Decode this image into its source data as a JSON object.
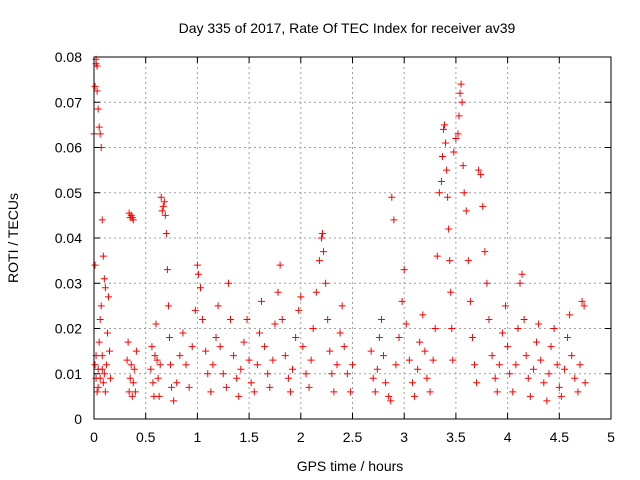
{
  "chart_data": {
    "type": "scatter",
    "title": "Day 335 of 2017, Rate Of TEC Index for receiver av39",
    "xlabel": "GPS time / hours",
    "ylabel": "ROTI / TECUs",
    "xlim": [
      0,
      5
    ],
    "ylim": [
      0,
      0.08
    ],
    "xticks": [
      0,
      0.5,
      1,
      1.5,
      2,
      2.5,
      3,
      3.5,
      4,
      4.5,
      5
    ],
    "yticks": [
      0,
      0.01,
      0.02,
      0.03,
      0.04,
      0.05,
      0.06,
      0.07,
      0.08
    ],
    "xtick_labels": [
      "0",
      "0.5",
      "1",
      "1.5",
      "2",
      "2.5",
      "3",
      "3.5",
      "4",
      "4.5",
      "5"
    ],
    "ytick_labels": [
      "0",
      "0.01",
      "0.02",
      "0.03",
      "0.04",
      "0.05",
      "0.06",
      "0.07",
      "0.08"
    ],
    "grid": true,
    "marker": "+",
    "color": "#ff0000",
    "series": [
      {
        "name": "ROTI",
        "points": [
          [
            0.01,
            0.0735
          ],
          [
            0.02,
            0.0795
          ],
          [
            0.02,
            0.0785
          ],
          [
            0.03,
            0.078
          ],
          [
            0.03,
            0.0725
          ],
          [
            0.04,
            0.0685
          ],
          [
            0.05,
            0.0645
          ],
          [
            0.06,
            0.063
          ],
          [
            0.07,
            0.06
          ],
          [
            0.08,
            0.044
          ],
          [
            0.09,
            0.036
          ],
          [
            0.1,
            0.031
          ],
          [
            0.11,
            0.029
          ],
          [
            0.0,
            0.063
          ],
          [
            0.01,
            0.034
          ],
          [
            0.01,
            0.012
          ],
          [
            0.02,
            0.009
          ],
          [
            0.03,
            0.006
          ],
          [
            0.04,
            0.011
          ],
          [
            0.05,
            0.017
          ],
          [
            0.06,
            0.022
          ],
          [
            0.07,
            0.025
          ],
          [
            0.08,
            0.014
          ],
          [
            0.09,
            0.008
          ],
          [
            0.1,
            0.01
          ],
          [
            0.11,
            0.006
          ],
          [
            0.12,
            0.012
          ],
          [
            0.13,
            0.019
          ],
          [
            0.14,
            0.027
          ],
          [
            0.15,
            0.015
          ],
          [
            0.16,
            0.009
          ],
          [
            0.02,
            0.014
          ],
          [
            0.04,
            0.007
          ],
          [
            0.06,
            0.009
          ],
          [
            0.08,
            0.011
          ],
          [
            0.34,
            0.0455
          ],
          [
            0.35,
            0.0445
          ],
          [
            0.36,
            0.045
          ],
          [
            0.37,
            0.0445
          ],
          [
            0.38,
            0.044
          ],
          [
            0.32,
            0.013
          ],
          [
            0.33,
            0.017
          ],
          [
            0.34,
            0.006
          ],
          [
            0.35,
            0.009
          ],
          [
            0.36,
            0.012
          ],
          [
            0.37,
            0.005
          ],
          [
            0.38,
            0.008
          ],
          [
            0.39,
            0.011
          ],
          [
            0.4,
            0.006
          ],
          [
            0.41,
            0.015
          ],
          [
            0.55,
            0.011
          ],
          [
            0.56,
            0.016
          ],
          [
            0.57,
            0.008
          ],
          [
            0.58,
            0.005
          ],
          [
            0.59,
            0.014
          ],
          [
            0.6,
            0.021
          ],
          [
            0.61,
            0.013
          ],
          [
            0.62,
            0.009
          ],
          [
            0.63,
            0.005
          ],
          [
            0.64,
            0.012
          ],
          [
            0.65,
            0.049
          ],
          [
            0.66,
            0.046
          ],
          [
            0.67,
            0.047
          ],
          [
            0.68,
            0.048
          ],
          [
            0.69,
            0.045
          ],
          [
            0.7,
            0.041
          ],
          [
            0.71,
            0.033
          ],
          [
            0.72,
            0.025
          ],
          [
            0.73,
            0.018
          ],
          [
            0.74,
            0.012
          ],
          [
            0.75,
            0.007
          ],
          [
            0.77,
            0.004
          ],
          [
            0.8,
            0.008
          ],
          [
            0.83,
            0.014
          ],
          [
            0.86,
            0.019
          ],
          [
            0.89,
            0.012
          ],
          [
            0.92,
            0.007
          ],
          [
            0.95,
            0.016
          ],
          [
            0.98,
            0.024
          ],
          [
            1.0,
            0.034
          ],
          [
            1.01,
            0.032
          ],
          [
            1.03,
            0.029
          ],
          [
            1.05,
            0.022
          ],
          [
            1.08,
            0.015
          ],
          [
            1.1,
            0.01
          ],
          [
            1.13,
            0.006
          ],
          [
            1.15,
            0.012
          ],
          [
            1.18,
            0.018
          ],
          [
            1.2,
            0.025
          ],
          [
            1.22,
            0.016
          ],
          [
            1.25,
            0.01
          ],
          [
            1.28,
            0.007
          ],
          [
            1.3,
            0.03
          ],
          [
            1.32,
            0.022
          ],
          [
            1.35,
            0.014
          ],
          [
            1.38,
            0.009
          ],
          [
            1.4,
            0.005
          ],
          [
            1.42,
            0.011
          ],
          [
            1.45,
            0.017
          ],
          [
            1.48,
            0.022
          ],
          [
            1.5,
            0.013
          ],
          [
            1.52,
            0.008
          ],
          [
            1.55,
            0.006
          ],
          [
            1.58,
            0.012
          ],
          [
            1.6,
            0.019
          ],
          [
            1.62,
            0.026
          ],
          [
            1.65,
            0.016
          ],
          [
            1.68,
            0.01
          ],
          [
            1.7,
            0.007
          ],
          [
            1.73,
            0.013
          ],
          [
            1.75,
            0.021
          ],
          [
            1.78,
            0.028
          ],
          [
            1.8,
            0.034
          ],
          [
            1.82,
            0.022
          ],
          [
            1.85,
            0.014
          ],
          [
            1.88,
            0.009
          ],
          [
            1.9,
            0.006
          ],
          [
            1.92,
            0.011
          ],
          [
            1.95,
            0.018
          ],
          [
            1.98,
            0.024
          ],
          [
            2.0,
            0.027
          ],
          [
            2.02,
            0.016
          ],
          [
            2.05,
            0.01
          ],
          [
            2.08,
            0.007
          ],
          [
            2.1,
            0.013
          ],
          [
            2.12,
            0.02
          ],
          [
            2.15,
            0.028
          ],
          [
            2.18,
            0.035
          ],
          [
            2.2,
            0.04
          ],
          [
            2.21,
            0.041
          ],
          [
            2.22,
            0.037
          ],
          [
            2.24,
            0.03
          ],
          [
            2.26,
            0.022
          ],
          [
            2.28,
            0.015
          ],
          [
            2.3,
            0.01
          ],
          [
            2.32,
            0.006
          ],
          [
            2.35,
            0.012
          ],
          [
            2.38,
            0.019
          ],
          [
            2.4,
            0.025
          ],
          [
            2.42,
            0.016
          ],
          [
            2.45,
            0.01
          ],
          [
            2.48,
            0.006
          ],
          [
            2.5,
            0.012
          ],
          [
            2.68,
            0.015
          ],
          [
            2.7,
            0.009
          ],
          [
            2.72,
            0.006
          ],
          [
            2.74,
            0.011
          ],
          [
            2.76,
            0.018
          ],
          [
            2.78,
            0.022
          ],
          [
            2.8,
            0.014
          ],
          [
            2.82,
            0.008
          ],
          [
            2.85,
            0.005
          ],
          [
            2.87,
            0.004
          ],
          [
            2.88,
            0.049
          ],
          [
            2.9,
            0.044
          ],
          [
            2.92,
            0.012
          ],
          [
            2.95,
            0.018
          ],
          [
            2.98,
            0.026
          ],
          [
            3.0,
            0.033
          ],
          [
            3.02,
            0.021
          ],
          [
            3.05,
            0.013
          ],
          [
            3.08,
            0.008
          ],
          [
            3.1,
            0.005
          ],
          [
            3.13,
            0.011
          ],
          [
            3.15,
            0.017
          ],
          [
            3.18,
            0.023
          ],
          [
            3.2,
            0.015
          ],
          [
            3.22,
            0.009
          ],
          [
            3.25,
            0.006
          ],
          [
            3.28,
            0.013
          ],
          [
            3.3,
            0.02
          ],
          [
            3.32,
            0.036
          ],
          [
            3.34,
            0.05
          ],
          [
            3.36,
            0.0525
          ],
          [
            3.37,
            0.058
          ],
          [
            3.38,
            0.064
          ],
          [
            3.39,
            0.065
          ],
          [
            3.4,
            0.061
          ],
          [
            3.41,
            0.055
          ],
          [
            3.42,
            0.049
          ],
          [
            3.43,
            0.042
          ],
          [
            3.44,
            0.035
          ],
          [
            3.45,
            0.028
          ],
          [
            3.46,
            0.02
          ],
          [
            3.47,
            0.013
          ],
          [
            3.48,
            0.059
          ],
          [
            3.5,
            0.062
          ],
          [
            3.52,
            0.063
          ],
          [
            3.53,
            0.067
          ],
          [
            3.54,
            0.072
          ],
          [
            3.55,
            0.074
          ],
          [
            3.56,
            0.07
          ],
          [
            3.57,
            0.056
          ],
          [
            3.58,
            0.05
          ],
          [
            3.6,
            0.046
          ],
          [
            3.62,
            0.035
          ],
          [
            3.64,
            0.026
          ],
          [
            3.66,
            0.018
          ],
          [
            3.68,
            0.012
          ],
          [
            3.7,
            0.008
          ],
          [
            3.72,
            0.055
          ],
          [
            3.74,
            0.054
          ],
          [
            3.76,
            0.047
          ],
          [
            3.78,
            0.037
          ],
          [
            3.8,
            0.03
          ],
          [
            3.82,
            0.022
          ],
          [
            3.85,
            0.014
          ],
          [
            3.88,
            0.009
          ],
          [
            3.9,
            0.006
          ],
          [
            3.92,
            0.012
          ],
          [
            3.95,
            0.019
          ],
          [
            3.98,
            0.025
          ],
          [
            4.0,
            0.016
          ],
          [
            4.02,
            0.01
          ],
          [
            4.05,
            0.006
          ],
          [
            4.08,
            0.012
          ],
          [
            4.1,
            0.02
          ],
          [
            4.12,
            0.03
          ],
          [
            4.14,
            0.032
          ],
          [
            4.16,
            0.022
          ],
          [
            4.18,
            0.014
          ],
          [
            4.2,
            0.009
          ],
          [
            4.22,
            0.005
          ],
          [
            4.25,
            0.011
          ],
          [
            4.28,
            0.017
          ],
          [
            4.3,
            0.021
          ],
          [
            4.32,
            0.013
          ],
          [
            4.35,
            0.008
          ],
          [
            4.38,
            0.004
          ],
          [
            4.4,
            0.01
          ],
          [
            4.42,
            0.016
          ],
          [
            4.45,
            0.02
          ],
          [
            4.48,
            0.012
          ],
          [
            4.5,
            0.007
          ],
          [
            4.52,
            0.005
          ],
          [
            4.55,
            0.011
          ],
          [
            4.58,
            0.018
          ],
          [
            4.6,
            0.023
          ],
          [
            4.62,
            0.014
          ],
          [
            4.65,
            0.009
          ],
          [
            4.68,
            0.006
          ],
          [
            4.7,
            0.012
          ],
          [
            4.72,
            0.026
          ],
          [
            4.74,
            0.025
          ],
          [
            4.75,
            0.008
          ]
        ]
      }
    ]
  }
}
